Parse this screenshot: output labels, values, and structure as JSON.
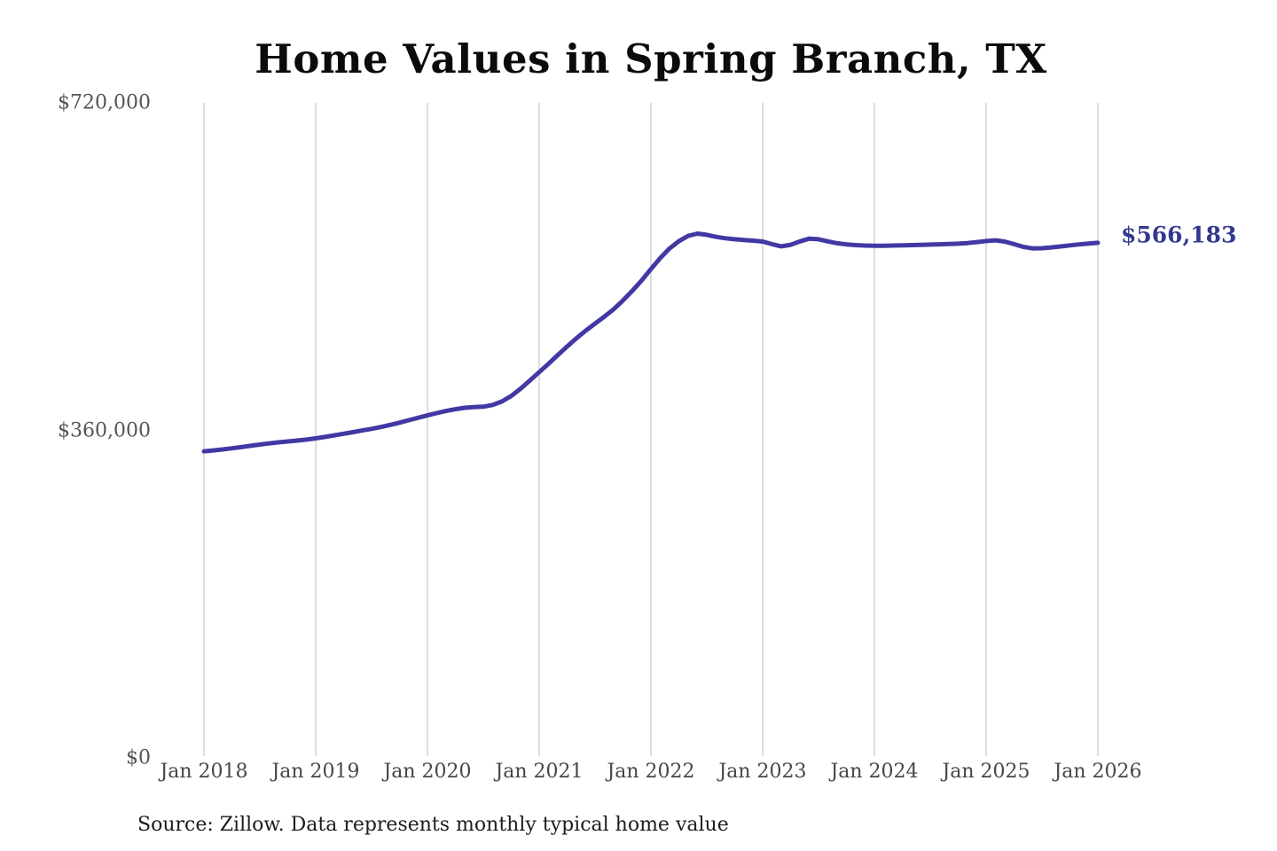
{
  "title": "Home Values in Spring Branch, TX",
  "source_note": "Source: Zillow. Data represents monthly typical home value",
  "colors": {
    "line": "#4238a4",
    "end_label": "#33398f",
    "gridline": "#cccccc",
    "title": "#0b0b0b",
    "y_tick": "#555555",
    "x_tick": "#474747",
    "source": "#1d1d1d",
    "background": "#ffffff"
  },
  "chart_data": {
    "type": "line",
    "title": "Home Values in Spring Branch, TX",
    "xlabel": "",
    "ylabel": "",
    "grid": "vertical-only",
    "legend": "none",
    "ylim": [
      0,
      720000
    ],
    "xlim": [
      2018,
      2026
    ],
    "y_ticks": [
      {
        "value": 0,
        "label": "$0"
      },
      {
        "value": 360000,
        "label": "$360,000"
      },
      {
        "value": 720000,
        "label": "$720,000"
      }
    ],
    "x_tick_years": [
      2018,
      2019,
      2020,
      2021,
      2022,
      2023,
      2024,
      2025,
      2026
    ],
    "x_tick_labels": [
      "Jan 2018",
      "Jan 2019",
      "Jan 2020",
      "Jan 2021",
      "Jan 2022",
      "Jan 2023",
      "Jan 2024",
      "Jan 2025",
      "Jan 2026"
    ],
    "annotation": {
      "label": "$566,183",
      "value": 566183
    },
    "series": [
      {
        "name": "Monthly typical home value",
        "x_start_year": 2018,
        "x_step_months": 1,
        "values": [
          337000,
          338000,
          339100,
          340300,
          341600,
          343000,
          344400,
          345700,
          346800,
          347800,
          348800,
          349900,
          351200,
          352800,
          354500,
          356300,
          358100,
          359900,
          361700,
          363700,
          366000,
          368500,
          371200,
          373800,
          376500,
          379000,
          381300,
          383300,
          384800,
          385600,
          386000,
          388000,
          391800,
          397800,
          405800,
          414800,
          424000,
          433200,
          442800,
          452200,
          461200,
          469600,
          477400,
          485000,
          493200,
          502800,
          513400,
          524800,
          537200,
          549400,
          559900,
          567900,
          573800,
          576300,
          574900,
          572700,
          571100,
          570100,
          569300,
          568500,
          567500,
          564700,
          562300,
          563900,
          567700,
          570700,
          570100,
          567700,
          565700,
          564400,
          563600,
          563100,
          562900,
          562900,
          563100,
          563300,
          563600,
          563900,
          564200,
          564500,
          564800,
          565200,
          565900,
          566900,
          568100,
          568900,
          567500,
          564700,
          561700,
          560000,
          560200,
          561100,
          562200,
          563300,
          564400,
          565400,
          566183
        ]
      }
    ]
  }
}
